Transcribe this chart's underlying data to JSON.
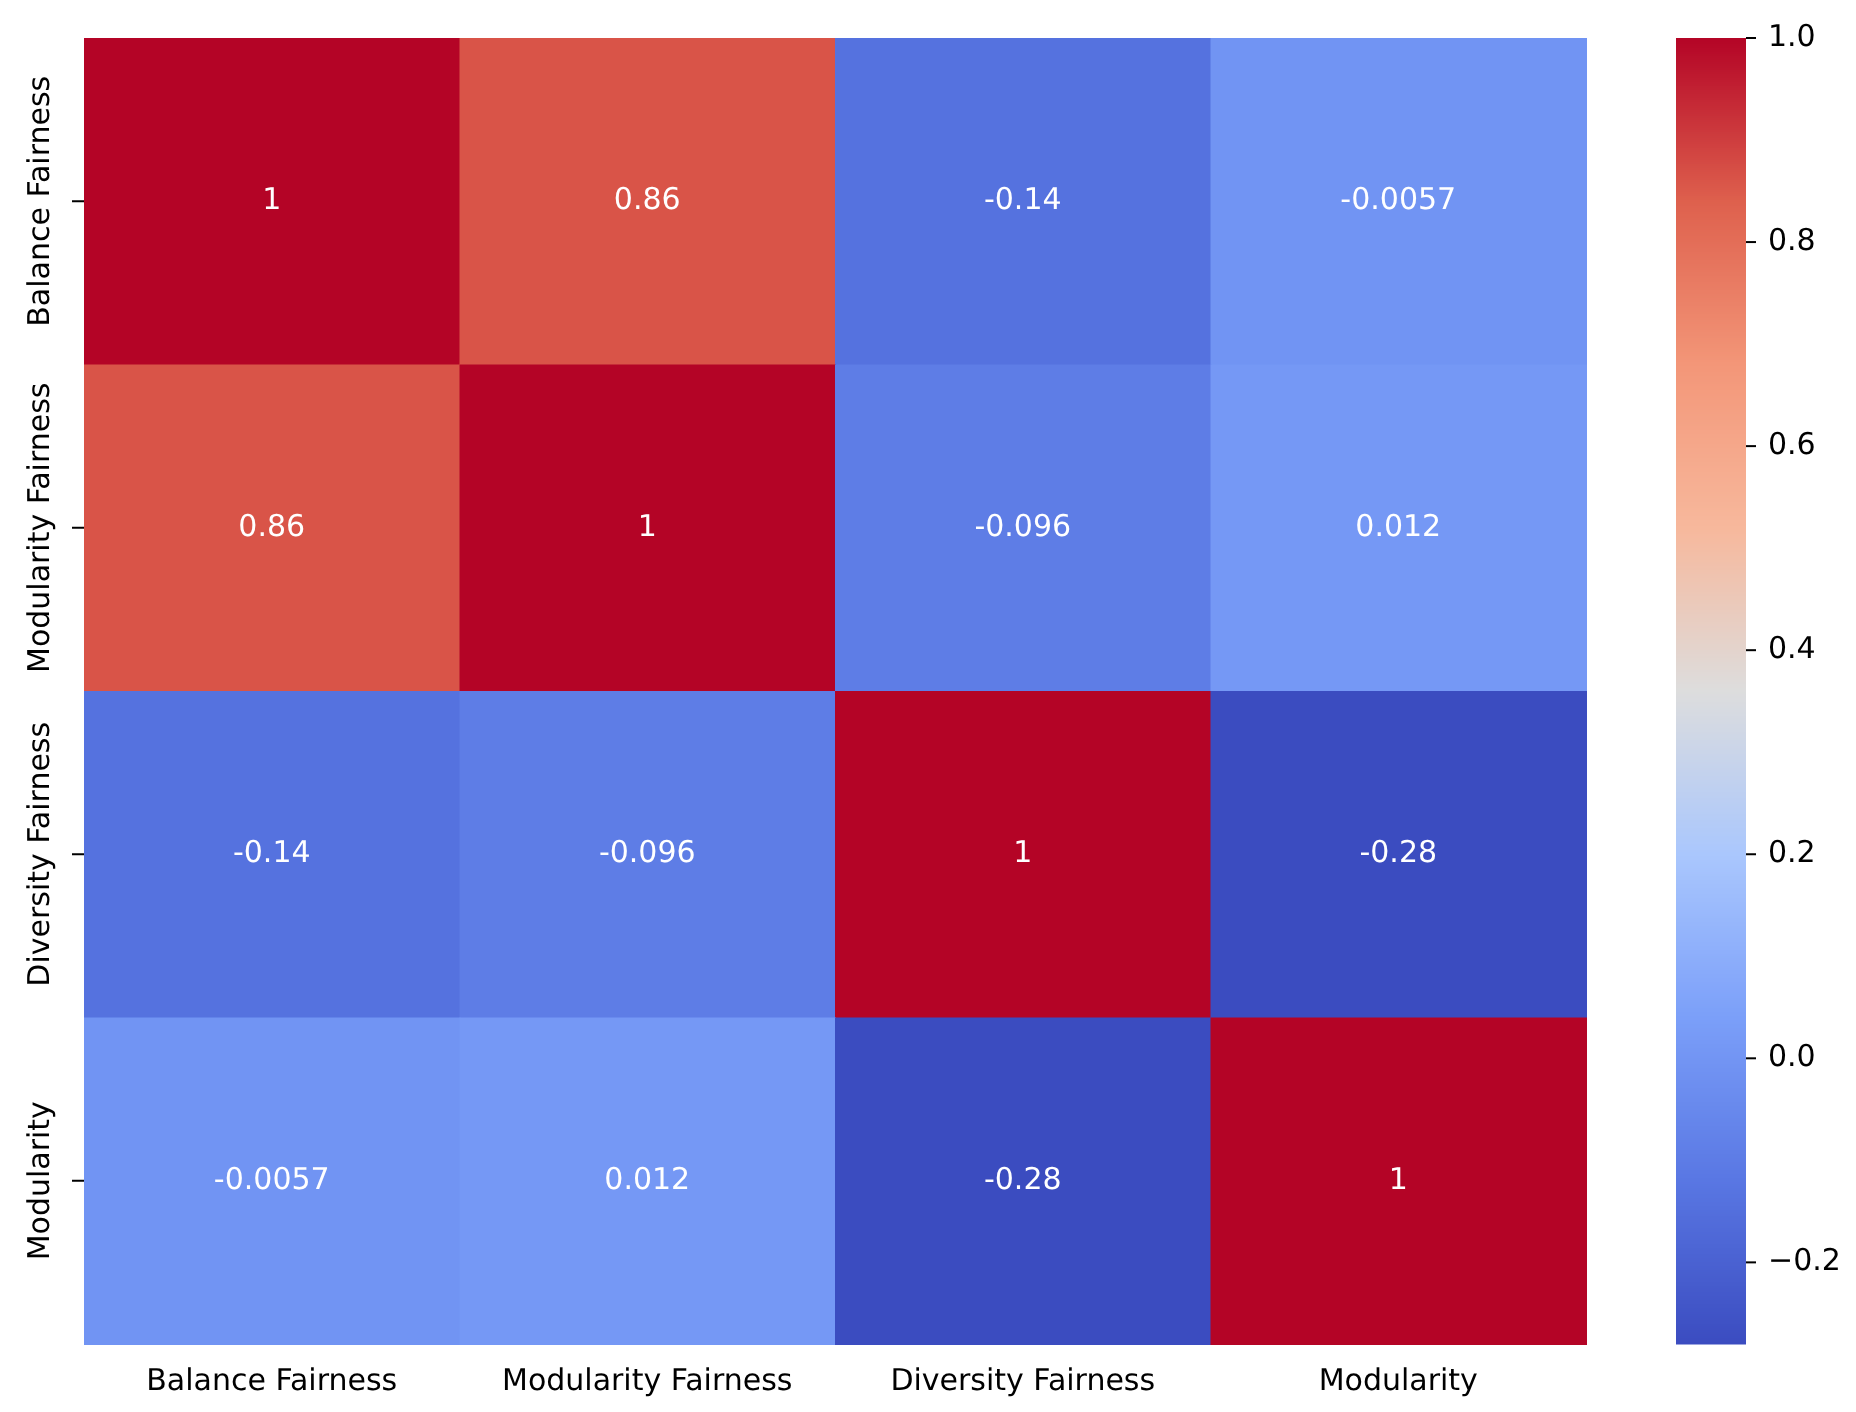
{
  "chart_data": {
    "type": "heatmap",
    "categories": [
      "Balance Fairness",
      "Modularity Fairness",
      "Diversity Fairness",
      "Modularity"
    ],
    "y_categories": [
      "Balance Fairness",
      "Modularity Fairness",
      "Diversity Fairness",
      "Modularity"
    ],
    "cells": [
      [
        1,
        0.86,
        -0.14,
        -0.0057
      ],
      [
        0.86,
        1,
        -0.096,
        0.012
      ],
      [
        -0.14,
        -0.096,
        1,
        -0.28
      ],
      [
        -0.0057,
        0.012,
        -0.28,
        1
      ]
    ],
    "data_labels": true,
    "clim": [
      -0.28,
      1.0
    ],
    "cticks": [
      {
        "value": -0.2,
        "label": "−0.2"
      },
      {
        "value": 0,
        "label": "0.0"
      },
      {
        "value": 0.2,
        "label": "0.2"
      },
      {
        "value": 0.4,
        "label": "0.4"
      },
      {
        "value": 0.6,
        "label": "0.6"
      },
      {
        "value": 0.8,
        "label": "0.8"
      },
      {
        "value": 1.0,
        "label": "1.0"
      }
    ]
  }
}
